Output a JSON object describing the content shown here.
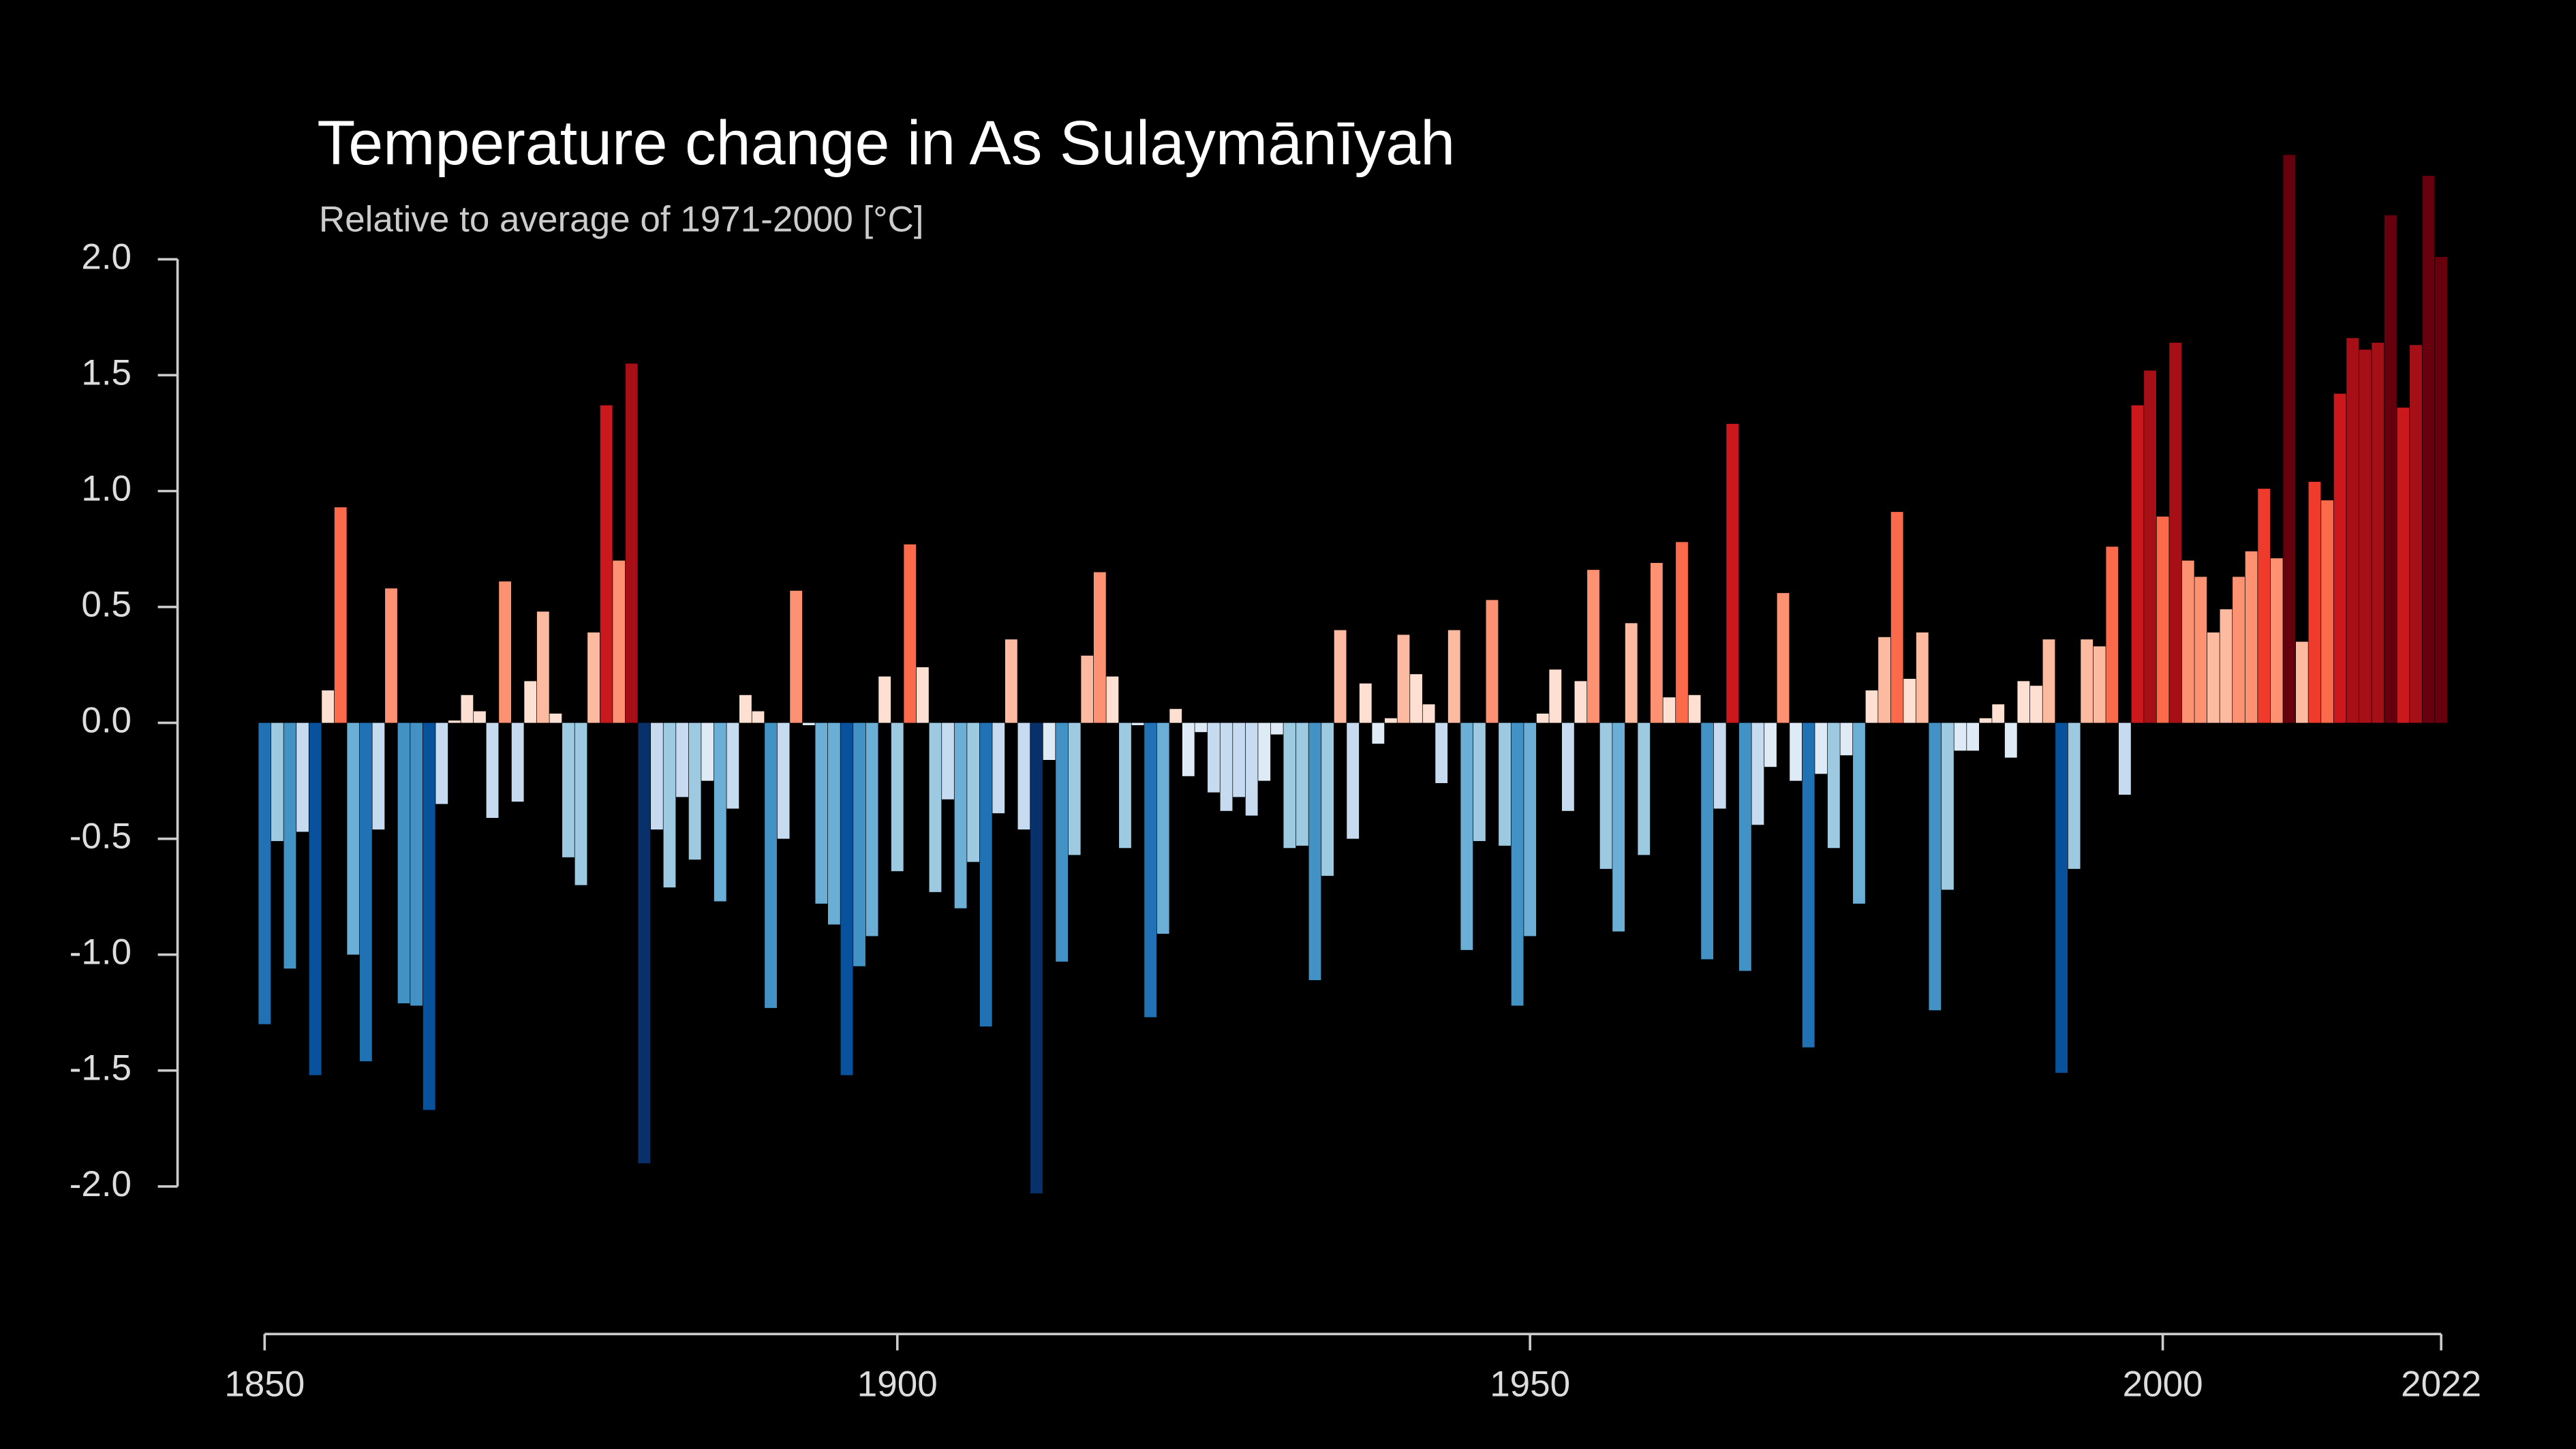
{
  "chart_data": {
    "type": "bar",
    "title": "Temperature change in As Sulaymānīyah",
    "subtitle": "Relative to average of 1971-2000  [°C]",
    "x": [
      1850,
      1851,
      1852,
      1853,
      1854,
      1855,
      1856,
      1857,
      1858,
      1859,
      1860,
      1861,
      1862,
      1863,
      1864,
      1865,
      1866,
      1867,
      1868,
      1869,
      1870,
      1871,
      1872,
      1873,
      1874,
      1875,
      1876,
      1877,
      1878,
      1879,
      1880,
      1881,
      1882,
      1883,
      1884,
      1885,
      1886,
      1887,
      1888,
      1889,
      1890,
      1891,
      1892,
      1893,
      1894,
      1895,
      1896,
      1897,
      1898,
      1899,
      1900,
      1901,
      1902,
      1903,
      1904,
      1905,
      1906,
      1907,
      1908,
      1909,
      1910,
      1911,
      1912,
      1913,
      1914,
      1915,
      1916,
      1917,
      1918,
      1919,
      1920,
      1921,
      1922,
      1923,
      1924,
      1925,
      1926,
      1927,
      1928,
      1929,
      1930,
      1931,
      1932,
      1933,
      1934,
      1935,
      1936,
      1937,
      1938,
      1939,
      1940,
      1941,
      1942,
      1943,
      1944,
      1945,
      1946,
      1947,
      1948,
      1949,
      1950,
      1951,
      1952,
      1953,
      1954,
      1955,
      1956,
      1957,
      1958,
      1959,
      1960,
      1961,
      1962,
      1963,
      1964,
      1965,
      1966,
      1967,
      1968,
      1969,
      1970,
      1971,
      1972,
      1973,
      1974,
      1975,
      1976,
      1977,
      1978,
      1979,
      1980,
      1981,
      1982,
      1983,
      1984,
      1985,
      1986,
      1987,
      1988,
      1989,
      1990,
      1991,
      1992,
      1993,
      1994,
      1995,
      1996,
      1997,
      1998,
      1999,
      2000,
      2001,
      2002,
      2003,
      2004,
      2005,
      2006,
      2007,
      2008,
      2009,
      2010,
      2011,
      2012,
      2013,
      2014,
      2015,
      2016,
      2017,
      2018,
      2019,
      2020,
      2021,
      2022
    ],
    "values": [
      -1.3,
      -0.51,
      -1.06,
      -0.47,
      -1.52,
      0.14,
      0.93,
      -1.0,
      -1.46,
      -0.46,
      0.58,
      -1.21,
      -1.22,
      -1.67,
      -0.35,
      0.01,
      0.12,
      0.05,
      -0.41,
      0.61,
      -0.34,
      0.18,
      0.48,
      0.04,
      -0.58,
      -0.7,
      0.39,
      1.37,
      0.7,
      1.55,
      -1.9,
      -0.46,
      -0.71,
      -0.32,
      -0.59,
      -0.25,
      -0.77,
      -0.37,
      0.12,
      0.05,
      -1.23,
      -0.5,
      0.57,
      -0.01,
      -0.78,
      -0.87,
      -1.52,
      -1.05,
      -0.92,
      0.2,
      -0.64,
      0.77,
      0.24,
      -0.73,
      -0.33,
      -0.8,
      -0.6,
      -1.31,
      -0.39,
      0.36,
      -0.46,
      -2.03,
      -0.16,
      -1.03,
      -0.57,
      0.29,
      0.65,
      0.2,
      -0.54,
      -0.01,
      -1.27,
      -0.91,
      0.06,
      -0.23,
      -0.04,
      -0.3,
      -0.38,
      -0.32,
      -0.4,
      -0.25,
      -0.05,
      -0.54,
      -0.53,
      -1.11,
      -0.66,
      0.4,
      -0.5,
      0.17,
      -0.09,
      0.02,
      0.38,
      0.21,
      0.08,
      -0.26,
      0.4,
      -0.98,
      -0.51,
      0.53,
      -0.53,
      -1.22,
      -0.92,
      0.04,
      0.23,
      -0.38,
      0.18,
      0.66,
      -0.63,
      -0.9,
      0.43,
      -0.57,
      0.69,
      0.11,
      0.78,
      0.12,
      -1.02,
      -0.37,
      1.29,
      -1.07,
      -0.44,
      -0.19,
      0.56,
      -0.25,
      -1.4,
      -0.22,
      -0.54,
      -0.14,
      -0.78,
      0.14,
      0.37,
      0.91,
      0.19,
      0.39,
      -1.24,
      -0.72,
      -0.12,
      -0.12,
      0.02,
      0.08,
      -0.15,
      0.18,
      0.16,
      0.36,
      -1.51,
      -0.63,
      0.36,
      0.33,
      0.76,
      -0.31,
      1.37,
      1.52,
      0.89,
      1.64,
      0.7,
      0.63,
      0.39,
      0.49,
      0.63,
      0.74,
      1.01,
      0.71,
      2.45,
      0.35,
      1.04,
      0.96,
      1.42,
      1.66,
      1.61,
      1.64,
      2.19,
      1.36,
      1.63,
      2.36,
      2.01
    ],
    "colormap": [
      "#08306b",
      "#08519c",
      "#2171b5",
      "#4292c6",
      "#6baed6",
      "#9ecae1",
      "#c6dbef",
      "#deebf7",
      "#fee0d2",
      "#fcbba1",
      "#fc9272",
      "#fb6a4a",
      "#ef3b2c",
      "#cb181d",
      "#a50f15",
      "#67000d"
    ],
    "xlim": [
      1850,
      2022
    ],
    "xticks": [
      1850,
      1900,
      1950,
      2000,
      2022
    ],
    "ylim": [
      -2.75,
      2.75
    ],
    "yticks": [
      {
        "value": 2,
        "label": "2.0"
      },
      {
        "value": 1.5,
        "label": "1.5"
      },
      {
        "value": 1,
        "label": "1.0"
      },
      {
        "value": 0.5,
        "label": "0.5"
      },
      {
        "value": 0,
        "label": "0.0"
      },
      {
        "value": -0.5,
        "label": "-0.5"
      },
      {
        "value": -1,
        "label": "-1.0"
      },
      {
        "value": -1.5,
        "label": "-1.5"
      },
      {
        "value": -2,
        "label": "-2.0"
      }
    ],
    "background": "#000000"
  }
}
